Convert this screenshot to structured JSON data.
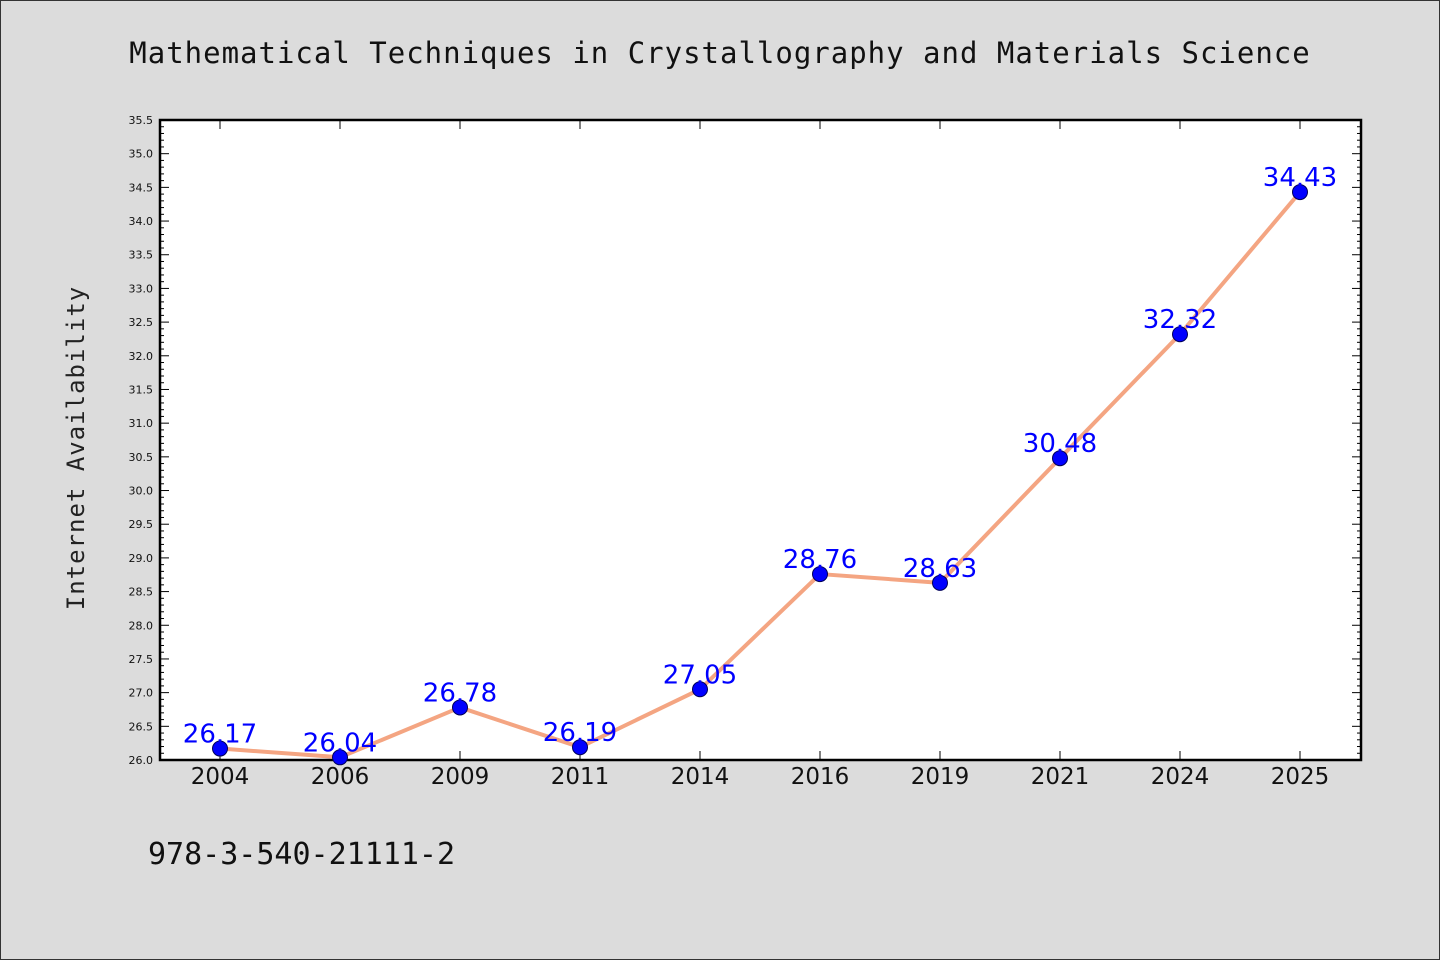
{
  "chart_data": {
    "type": "line",
    "title": "Mathematical Techniques in Crystallography and Materials Science",
    "ylabel": "Internet Availability",
    "xlabel": "",
    "categories": [
      "2004",
      "2006",
      "2009",
      "2011",
      "2014",
      "2016",
      "2019",
      "2021",
      "2024",
      "2025"
    ],
    "values": [
      26.17,
      26.04,
      26.78,
      26.19,
      27.05,
      28.76,
      28.63,
      30.48,
      32.32,
      34.43
    ],
    "data_labels": [
      "26.17",
      "26.04",
      "26.78",
      "26.19",
      "27.05",
      "28.76",
      "28.63",
      "30.48",
      "32.32",
      "34.43"
    ],
    "ylim": [
      26.0,
      35.5
    ],
    "yticks": [
      "26.0",
      "26.5",
      "27.0",
      "27.5",
      "28.0",
      "28.5",
      "29.0",
      "29.5",
      "30.0",
      "30.5",
      "31.0",
      "31.5",
      "32.0",
      "32.5",
      "33.0",
      "33.5",
      "34.0",
      "34.5",
      "35.0",
      "35.5"
    ],
    "grid": false,
    "legend": "none",
    "line_color": "#f4a582",
    "marker_color": "#0000ff",
    "label_color": "#0000ff"
  },
  "footer": {
    "isbn": "978-3-540-21111-2"
  }
}
